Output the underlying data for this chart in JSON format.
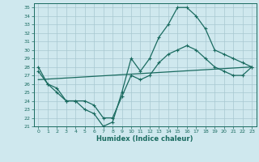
{
  "xlabel": "Humidex (Indice chaleur)",
  "xlim": [
    -0.5,
    23.5
  ],
  "ylim": [
    21,
    35.5
  ],
  "xticks": [
    0,
    1,
    2,
    3,
    4,
    5,
    6,
    7,
    8,
    9,
    10,
    11,
    12,
    13,
    14,
    15,
    16,
    17,
    18,
    19,
    20,
    21,
    22,
    23
  ],
  "yticks": [
    21,
    22,
    23,
    24,
    25,
    26,
    27,
    28,
    29,
    30,
    31,
    32,
    33,
    34,
    35
  ],
  "bg_color": "#cfe8ee",
  "line_color": "#1a6b60",
  "grid_color": "#a8c8d0",
  "line1_x": [
    0,
    1,
    2,
    3,
    4,
    5,
    6,
    7,
    8,
    9,
    10,
    11,
    12,
    13,
    14,
    15,
    16,
    17,
    18,
    19,
    20,
    21,
    22,
    23
  ],
  "line1_y": [
    28,
    26,
    25,
    24,
    24,
    23,
    22.5,
    21,
    21.5,
    25,
    29,
    27.5,
    29,
    31.5,
    33,
    35,
    35,
    34,
    32.5,
    30,
    29.5,
    29,
    28.5,
    28
  ],
  "line2_x": [
    0,
    1,
    2,
    3,
    4,
    5,
    6,
    7,
    8,
    9,
    10,
    11,
    12,
    13,
    14,
    15,
    16,
    17,
    18,
    19,
    20,
    21,
    22,
    23
  ],
  "line2_y": [
    27.5,
    26,
    25.5,
    24,
    24,
    24,
    23.5,
    22,
    22,
    24.5,
    27,
    26.5,
    27,
    28.5,
    29.5,
    30,
    30.5,
    30,
    29,
    28,
    27.5,
    27,
    27,
    28
  ],
  "line3_x": [
    0,
    23
  ],
  "line3_y": [
    26.5,
    28
  ]
}
